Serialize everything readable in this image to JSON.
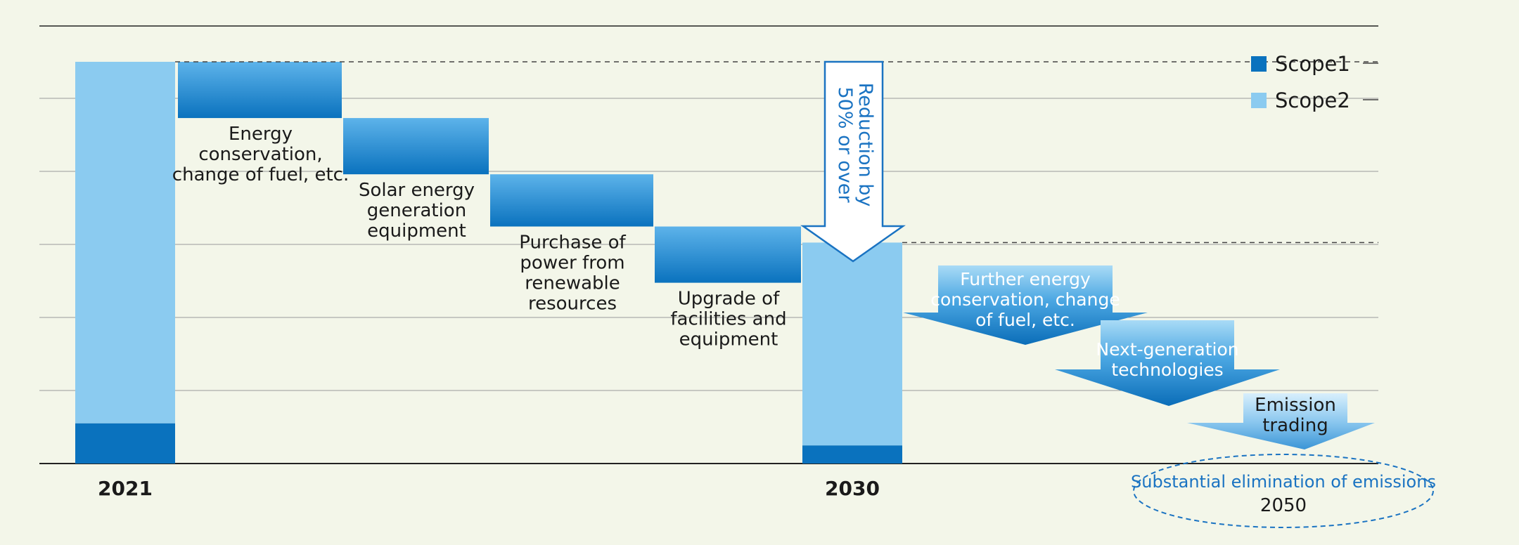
{
  "colors": {
    "background": "#f3f6e9",
    "scope1": "#0a72be",
    "scope2": "#8bcbf0",
    "step_top": "#5db3ea",
    "step_bottom": "#0a72be",
    "accent_blue": "#1a73c2",
    "gridline": "#9a9a9a"
  },
  "chart_data": {
    "type": "bar",
    "categories": [
      "2021",
      "2030",
      "2050"
    ],
    "series": [
      {
        "name": "Scope1",
        "values": [
          10,
          4.5,
          null
        ]
      },
      {
        "name": "Scope2",
        "values": [
          90,
          50.5,
          null
        ]
      }
    ],
    "ylim": [
      0,
      120
    ],
    "grid": true,
    "legend": {
      "position": "top-right",
      "items": [
        "Scope1",
        "Scope2"
      ]
    },
    "reduction_steps_2030": [
      {
        "label_lines": [
          "Energy",
          "conservation,",
          "change of fuel, etc."
        ],
        "reduction": 14
      },
      {
        "label_lines": [
          "Solar energy",
          "generation",
          "equipment"
        ],
        "reduction": 14
      },
      {
        "label_lines": [
          "Purchase of",
          "power from",
          "renewable",
          "resources"
        ],
        "reduction": 13
      },
      {
        "label_lines": [
          "Upgrade of",
          "facilities and",
          "equipment"
        ],
        "reduction": 14
      }
    ],
    "reduction_arrow": {
      "label_lines": [
        "Reduction by",
        "50% or over"
      ]
    },
    "post_2030_steps": [
      {
        "label_lines": [
          "Further energy",
          "conservation, change",
          "of fuel, etc."
        ]
      },
      {
        "label_lines": [
          "Next-generation",
          "technologies"
        ]
      },
      {
        "label_lines": [
          "Emission",
          "trading"
        ]
      }
    ],
    "goal": {
      "text": "Substantial elimination of emissions",
      "year": "2050"
    }
  }
}
